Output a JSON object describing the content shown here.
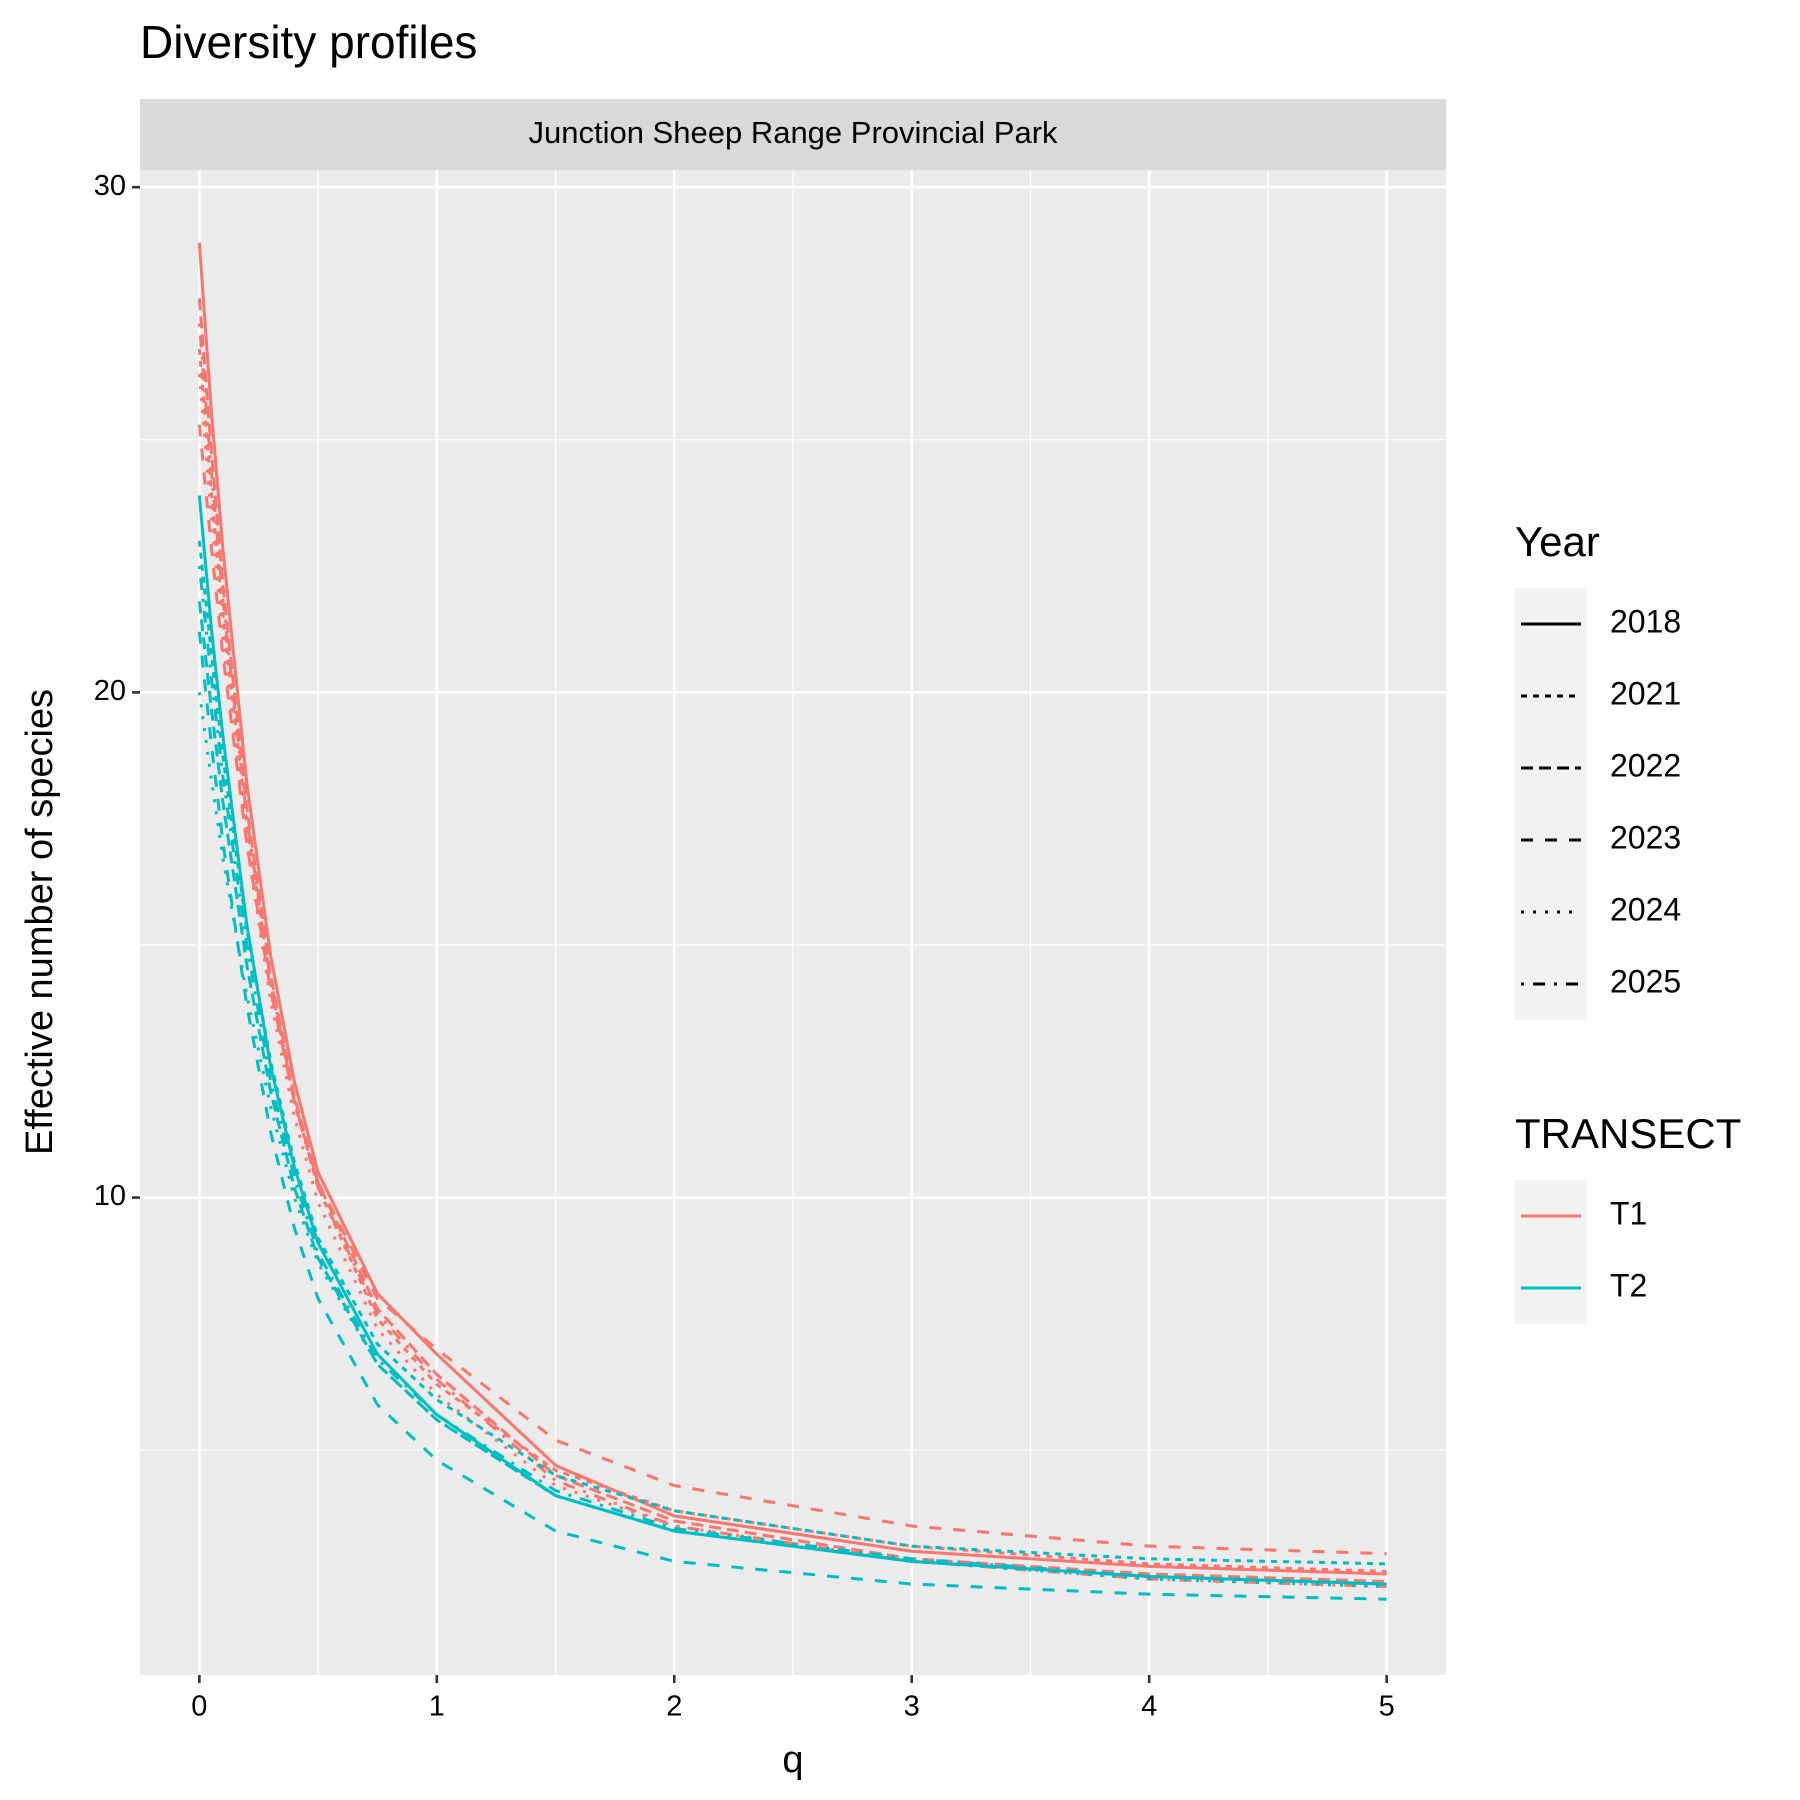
{
  "chart_data": {
    "type": "line",
    "title": "Diversity profiles",
    "facet": "Junction Sheep Range Provincial Park",
    "x_label": "q",
    "y_label": "Effective number of species",
    "x": [
      0,
      0.05,
      0.1,
      0.2,
      0.3,
      0.4,
      0.5,
      0.75,
      1,
      1.5,
      2,
      3,
      4,
      5
    ],
    "xlim": [
      -0.25,
      5.25
    ],
    "xticks": [
      0,
      1,
      2,
      3,
      4,
      5
    ],
    "xminor": [
      0.5,
      1.5,
      2.5,
      3.5,
      4.5
    ],
    "ylim": [
      0.55,
      30.34
    ],
    "yticks": [
      10,
      20,
      30
    ],
    "yminor": [
      5,
      15,
      25
    ],
    "grid": true,
    "legends": [
      {
        "title": "Year",
        "keys": [
          {
            "label": "2018",
            "dash": "solid"
          },
          {
            "label": "2021",
            "dash": "22"
          },
          {
            "label": "2022",
            "dash": "42"
          },
          {
            "label": "2023",
            "dash": "44"
          },
          {
            "label": "2024",
            "dash": "13"
          },
          {
            "label": "2025",
            "dash": "1343"
          }
        ]
      },
      {
        "title": "TRANSECT",
        "keys": [
          {
            "label": "T1",
            "color": "#F8766D"
          },
          {
            "label": "T2",
            "color": "#00BFC4"
          }
        ]
      }
    ],
    "series": [
      {
        "color": "#F8766D",
        "dash": "solid",
        "values": [
          28.9,
          25.6,
          22.8,
          18.2,
          14.8,
          12.3,
          10.5,
          8.1,
          6.9,
          4.7,
          3.7,
          3.0,
          2.7,
          2.55
        ]
      },
      {
        "color": "#F8766D",
        "dash": "22",
        "values": [
          26.8,
          24.0,
          21.5,
          17.4,
          14.2,
          11.9,
          10.2,
          7.6,
          6.3,
          4.6,
          3.8,
          3.1,
          2.75,
          2.6
        ]
      },
      {
        "color": "#F8766D",
        "dash": "42",
        "values": [
          27.8,
          24.8,
          22.1,
          17.7,
          14.4,
          12.0,
          10.3,
          7.8,
          6.5,
          4.5,
          3.6,
          2.85,
          2.55,
          2.4
        ]
      },
      {
        "color": "#F8766D",
        "dash": "44",
        "values": [
          25.3,
          22.9,
          20.7,
          17.0,
          14.1,
          11.9,
          10.3,
          8.0,
          7.0,
          5.2,
          4.3,
          3.5,
          3.1,
          2.95
        ]
      },
      {
        "color": "#F8766D",
        "dash": "13",
        "values": [
          26.3,
          23.5,
          21.0,
          17.0,
          13.9,
          11.6,
          9.9,
          7.4,
          6.1,
          4.3,
          3.5,
          2.8,
          2.5,
          2.35
        ]
      },
      {
        "color": "#F8766D",
        "dash": "1343",
        "values": [
          27.3,
          24.4,
          21.8,
          17.5,
          14.3,
          11.9,
          10.2,
          7.7,
          6.4,
          4.4,
          3.5,
          2.8,
          2.45,
          2.3
        ]
      },
      {
        "color": "#00BFC4",
        "dash": "solid",
        "values": [
          23.9,
          21.3,
          19.1,
          15.4,
          12.6,
          10.6,
          9.1,
          6.9,
          5.7,
          4.1,
          3.4,
          2.8,
          2.5,
          2.35
        ]
      },
      {
        "color": "#00BFC4",
        "dash": "22",
        "values": [
          23.0,
          20.8,
          18.7,
          15.3,
          12.7,
          10.7,
          9.2,
          7.1,
          6.0,
          4.5,
          3.8,
          3.1,
          2.85,
          2.75
        ]
      },
      {
        "color": "#00BFC4",
        "dash": "42",
        "values": [
          21.8,
          19.7,
          17.8,
          14.6,
          12.1,
          10.2,
          8.8,
          6.7,
          5.6,
          4.1,
          3.4,
          2.8,
          2.5,
          2.35
        ]
      },
      {
        "color": "#00BFC4",
        "dash": "44",
        "values": [
          21.2,
          19.0,
          17.0,
          13.8,
          11.3,
          9.4,
          8.0,
          5.9,
          4.8,
          3.4,
          2.8,
          2.35,
          2.15,
          2.05
        ]
      },
      {
        "color": "#00BFC4",
        "dash": "13",
        "values": [
          20.0,
          18.3,
          16.7,
          14.0,
          11.8,
          10.0,
          8.7,
          6.7,
          5.6,
          4.1,
          3.4,
          2.8,
          2.45,
          2.3
        ]
      },
      {
        "color": "#00BFC4",
        "dash": "1343",
        "values": [
          22.5,
          20.3,
          18.3,
          15.0,
          12.3,
          10.4,
          8.9,
          6.8,
          5.7,
          4.2,
          3.45,
          2.85,
          2.5,
          2.35
        ]
      }
    ]
  }
}
